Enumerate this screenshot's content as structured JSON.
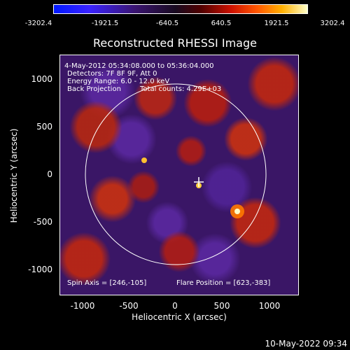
{
  "colorbar": {
    "labels": [
      "-3202.4",
      "-1921.5",
      "-640.5",
      "640.5",
      "1921.5",
      "3202.4"
    ]
  },
  "title": "Reconstructed RHESSI Image",
  "annotations": {
    "time": "4-May-2012 05:34:08.000 to 05:36:04.000",
    "detectors": "Detectors: 7F 8F 9F, Att 0",
    "energy": "Energy Range: 6.0 - 12.0 keV",
    "method": "Back Projection",
    "counts": "Total counts: 4.29E+03",
    "spin_axis": "Spin Axis = [246,-105]",
    "flare_position": "Flare Position = [623,-383]"
  },
  "axes": {
    "xlabel": "Heliocentric X (arcsec)",
    "ylabel": "Heliocentric Y (arcsec)",
    "xticks": [
      "-1000",
      "-500",
      "0",
      "500",
      "1000"
    ],
    "yticks": [
      "1000",
      "500",
      "0",
      "-500",
      "-1000"
    ]
  },
  "timestamp": "10-May-2022 09:34"
}
